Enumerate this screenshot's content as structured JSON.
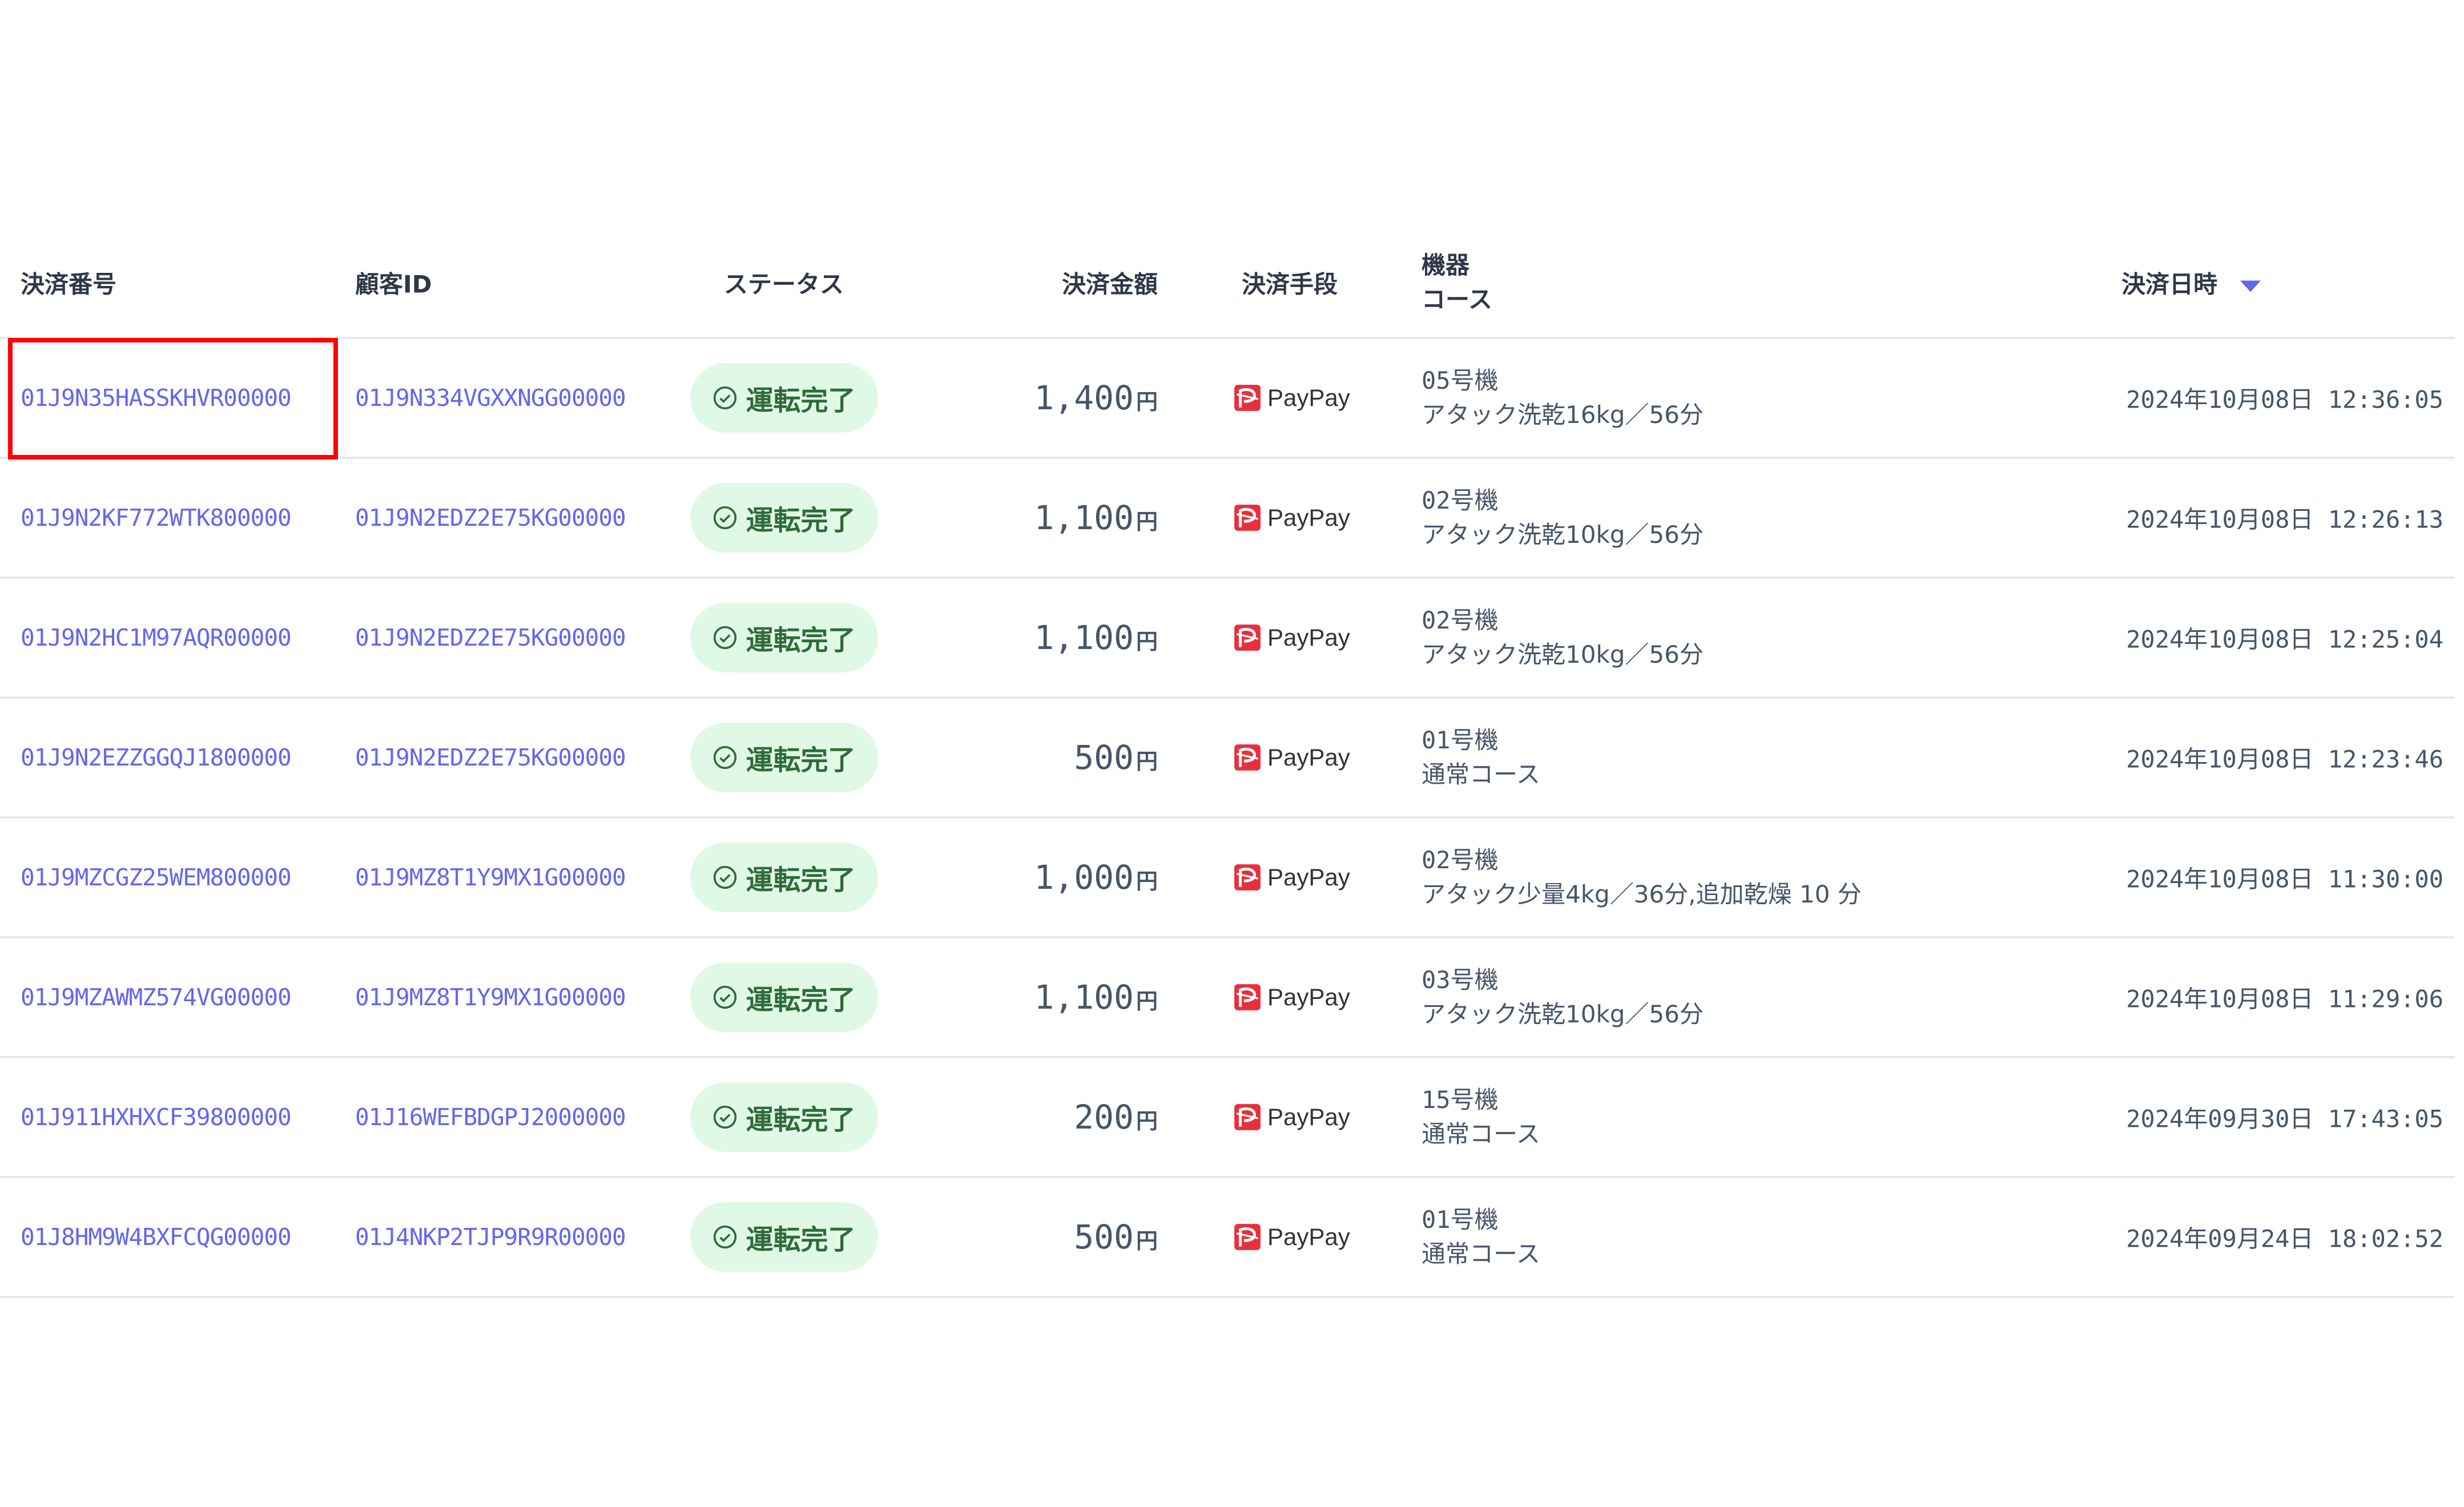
{
  "header": {
    "payment_no": "決済番号",
    "customer_id": "顧客ID",
    "status": "ステータス",
    "amount": "決済金額",
    "method": "決済手段",
    "device": "機器",
    "course": "コース",
    "datetime": "決済日時",
    "sort_icon": "caret-down-icon"
  },
  "accent_color": "#6366f1",
  "highlight_color": "#ff0000",
  "rows": [
    {
      "payment_no": "01J9N35HASSKHVR00000",
      "customer_id": "01J9N334VGXXNGG00000",
      "status": "運転完了",
      "amount": "1,400",
      "currency": "円",
      "method": "PayPay",
      "device": "05号機",
      "course": "アタック洗乾16kg／56分",
      "datetime": "2024年10月08日 12:36:05"
    },
    {
      "payment_no": "01J9N2KF772WTK800000",
      "customer_id": "01J9N2EDZ2E75KG00000",
      "status": "運転完了",
      "amount": "1,100",
      "currency": "円",
      "method": "PayPay",
      "device": "02号機",
      "course": "アタック洗乾10kg／56分",
      "datetime": "2024年10月08日 12:26:13"
    },
    {
      "payment_no": "01J9N2HC1M97AQR00000",
      "customer_id": "01J9N2EDZ2E75KG00000",
      "status": "運転完了",
      "amount": "1,100",
      "currency": "円",
      "method": "PayPay",
      "device": "02号機",
      "course": "アタック洗乾10kg／56分",
      "datetime": "2024年10月08日 12:25:04"
    },
    {
      "payment_no": "01J9N2EZZGGQJ1800000",
      "customer_id": "01J9N2EDZ2E75KG00000",
      "status": "運転完了",
      "amount": "500",
      "currency": "円",
      "method": "PayPay",
      "device": "01号機",
      "course": "通常コース",
      "datetime": "2024年10月08日 12:23:46"
    },
    {
      "payment_no": "01J9MZCGZ25WEM800000",
      "customer_id": "01J9MZ8T1Y9MX1G00000",
      "status": "運転完了",
      "amount": "1,000",
      "currency": "円",
      "method": "PayPay",
      "device": "02号機",
      "course": "アタック少量4kg／36分,追加乾燥 10 分",
      "datetime": "2024年10月08日 11:30:00"
    },
    {
      "payment_no": "01J9MZAWMZ574VG00000",
      "customer_id": "01J9MZ8T1Y9MX1G00000",
      "status": "運転完了",
      "amount": "1,100",
      "currency": "円",
      "method": "PayPay",
      "device": "03号機",
      "course": "アタック洗乾10kg／56分",
      "datetime": "2024年10月08日 11:29:06"
    },
    {
      "payment_no": "01J911HXHXCF39800000",
      "customer_id": "01J16WEFBDGPJ2000000",
      "status": "運転完了",
      "amount": "200",
      "currency": "円",
      "method": "PayPay",
      "device": "15号機",
      "course": "通常コース",
      "datetime": "2024年09月30日 17:43:05"
    },
    {
      "payment_no": "01J8HM9W4BXFCQG00000",
      "customer_id": "01J4NKP2TJP9R9R00000",
      "status": "運転完了",
      "amount": "500",
      "currency": "円",
      "method": "PayPay",
      "device": "01号機",
      "course": "通常コース",
      "datetime": "2024年09月24日 18:02:52"
    }
  ]
}
